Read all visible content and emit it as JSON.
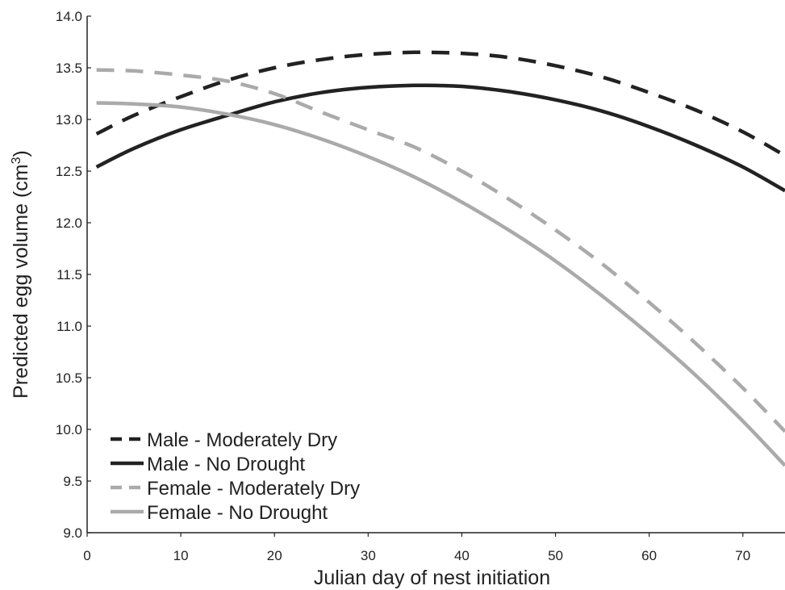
{
  "chart_data": {
    "type": "line",
    "xlabel": "Julian day of nest initiation",
    "ylabel": "Predicted egg volume (cm³)",
    "xlim": [
      0,
      74.5
    ],
    "ylim": [
      9.0,
      14.0
    ],
    "x_ticks": [
      "0",
      "10",
      "20",
      "30",
      "40",
      "50",
      "60",
      "70"
    ],
    "y_ticks": [
      "9.0",
      "9.5",
      "10.0",
      "10.5",
      "11.0",
      "11.5",
      "12.0",
      "12.5",
      "13.0",
      "13.5",
      "14.0"
    ],
    "grid": false,
    "legend_position": "bottom-left",
    "x": [
      1,
      5,
      10,
      15,
      20,
      25,
      30,
      35,
      40,
      45,
      50,
      55,
      60,
      65,
      70,
      74.5
    ],
    "series": [
      {
        "name": "Male - Moderately Dry",
        "color": "#222222",
        "dash": "dashed",
        "values": [
          12.86,
          13.04,
          13.22,
          13.38,
          13.5,
          13.58,
          13.63,
          13.65,
          13.64,
          13.6,
          13.52,
          13.41,
          13.26,
          13.09,
          12.88,
          12.65
        ]
      },
      {
        "name": "Male - No Drought",
        "color": "#222222",
        "dash": "solid",
        "values": [
          12.54,
          12.72,
          12.9,
          13.04,
          13.17,
          13.26,
          13.31,
          13.33,
          13.32,
          13.27,
          13.19,
          13.08,
          12.93,
          12.75,
          12.54,
          12.31
        ]
      },
      {
        "name": "Female - Moderately Dry",
        "color": "#aaaaaa",
        "dash": "dashed",
        "values": [
          13.48,
          13.47,
          13.43,
          13.37,
          13.25,
          13.07,
          12.9,
          12.73,
          12.5,
          12.23,
          11.93,
          11.6,
          11.23,
          10.83,
          10.4,
          9.98
        ]
      },
      {
        "name": "Female - No Drought",
        "color": "#aaaaaa",
        "dash": "solid",
        "values": [
          13.16,
          13.15,
          13.12,
          13.05,
          12.95,
          12.81,
          12.64,
          12.44,
          12.2,
          11.93,
          11.63,
          11.29,
          10.92,
          10.52,
          10.08,
          9.65
        ]
      }
    ]
  }
}
